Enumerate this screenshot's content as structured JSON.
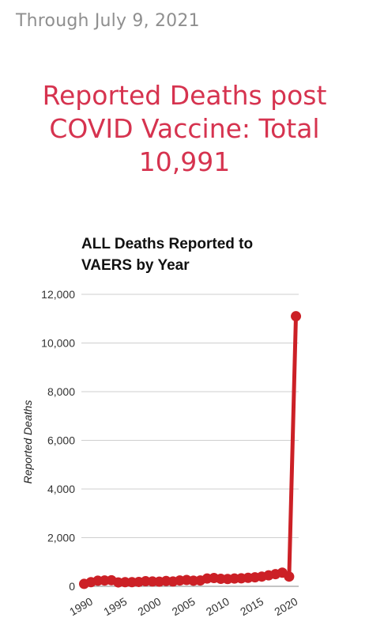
{
  "header": {
    "date_text": "Through July 9, 2021",
    "headline_lines": [
      "Reported Deaths post",
      "COVID Vaccine: Total",
      "10,991"
    ]
  },
  "colors": {
    "headline": "#d6334f",
    "series": "#cc2026",
    "date": "#8f8f8f"
  },
  "chart_data": {
    "type": "line",
    "title_lines": [
      "ALL Deaths Reported to",
      "VAERS by Year"
    ],
    "title": "ALL Deaths Reported to VAERS by Year",
    "xlabel": "",
    "ylabel": "Reported Deaths",
    "ylim": [
      0,
      12000
    ],
    "yticks": [
      0,
      2000,
      4000,
      6000,
      8000,
      10000,
      12000
    ],
    "ytick_labels": [
      "0",
      "2,000",
      "4,000",
      "6,000",
      "8,000",
      "10,000",
      "12,000"
    ],
    "xticks": [
      "1990",
      "1995",
      "2000",
      "2005",
      "2010",
      "2015",
      "2020"
    ],
    "grid": true,
    "series": [
      {
        "x": [
          1990,
          1991,
          1992,
          1993,
          1994,
          1995,
          1996,
          1997,
          1998,
          1999,
          2000,
          2001,
          2002,
          2003,
          2004,
          2005,
          2006,
          2007,
          2008,
          2009,
          2010,
          2011,
          2012,
          2013,
          2014,
          2015,
          2016,
          2017,
          2018,
          2019,
          2020,
          2021
        ],
        "values": [
          100,
          170,
          230,
          240,
          250,
          160,
          170,
          170,
          180,
          210,
          200,
          190,
          220,
          200,
          240,
          260,
          230,
          240,
          320,
          340,
          310,
          300,
          320,
          330,
          350,
          370,
          400,
          450,
          500,
          560,
          400,
          11100
        ]
      }
    ]
  }
}
